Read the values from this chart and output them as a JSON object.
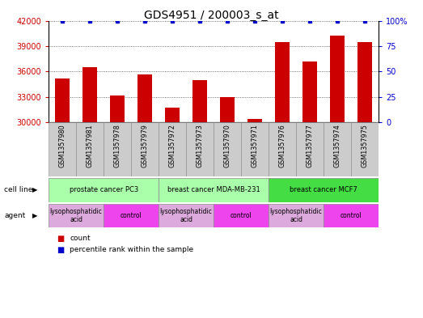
{
  "title": "GDS4951 / 200003_s_at",
  "samples": [
    "GSM1357980",
    "GSM1357981",
    "GSM1357978",
    "GSM1357979",
    "GSM1357972",
    "GSM1357973",
    "GSM1357970",
    "GSM1357971",
    "GSM1357976",
    "GSM1357977",
    "GSM1357974",
    "GSM1357975"
  ],
  "counts": [
    35200,
    36500,
    33200,
    35700,
    31700,
    35000,
    33000,
    30400,
    39500,
    37200,
    40200,
    39500
  ],
  "percentile": [
    100,
    100,
    100,
    100,
    100,
    100,
    100,
    100,
    100,
    100,
    100,
    100
  ],
  "ylim_left": [
    30000,
    42000
  ],
  "ylim_right": [
    0,
    100
  ],
  "yticks_left": [
    30000,
    33000,
    36000,
    39000,
    42000
  ],
  "yticks_right": [
    0,
    25,
    50,
    75,
    100
  ],
  "cell_line_groups": [
    {
      "label": "prostate cancer PC3",
      "start": 0,
      "end": 3,
      "color": "#aaffaa"
    },
    {
      "label": "breast cancer MDA-MB-231",
      "start": 4,
      "end": 7,
      "color": "#aaffaa"
    },
    {
      "label": "breast cancer MCF7",
      "start": 8,
      "end": 11,
      "color": "#44dd44"
    }
  ],
  "agent_groups": [
    {
      "label": "lysophosphatidic\nacid",
      "start": 0,
      "end": 1,
      "color": "#ddaadd"
    },
    {
      "label": "control",
      "start": 2,
      "end": 3,
      "color": "#ee44ee"
    },
    {
      "label": "lysophosphatidic\nacid",
      "start": 4,
      "end": 5,
      "color": "#ddaadd"
    },
    {
      "label": "control",
      "start": 6,
      "end": 7,
      "color": "#ee44ee"
    },
    {
      "label": "lysophosphatidic\nacid",
      "start": 8,
      "end": 9,
      "color": "#ddaadd"
    },
    {
      "label": "control",
      "start": 10,
      "end": 11,
      "color": "#ee44ee"
    }
  ],
  "bar_color": "#cc0000",
  "dot_color": "#0000cc",
  "title_color": "#000000",
  "left_axis_color": "#cc0000",
  "right_axis_color": "#0000cc",
  "legend_count_color": "#cc0000",
  "legend_pct_color": "#0000cc",
  "bg_color": "#ffffff",
  "grid_color": "#555555",
  "xticklabel_bg": "#cccccc"
}
